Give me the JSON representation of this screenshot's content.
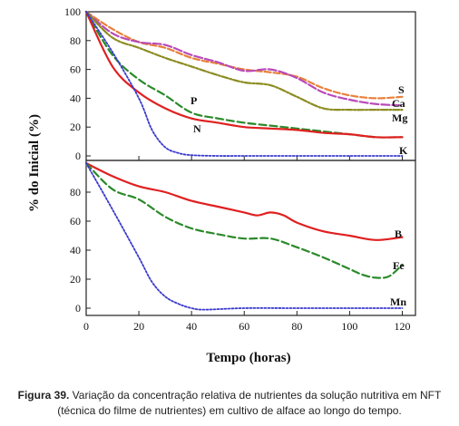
{
  "caption": {
    "label": "Figura 39.",
    "line1": "Variação da concentração relativa de nutrientes da solução nutritiva em NFT",
    "line2": "(técnica do filme de nutrientes) em cultivo de alface ao longo do tempo."
  },
  "chart_data": [
    {
      "type": "line",
      "xlabel": "Tempo (horas)",
      "ylabel": "% do Inicial (%)",
      "xlim": [
        0,
        125
      ],
      "ylim": [
        0,
        100
      ],
      "xticks": [
        0,
        20,
        40,
        60,
        80,
        100,
        120
      ],
      "yticks": [
        0,
        20,
        40,
        60,
        80,
        100
      ],
      "series": [
        {
          "name": "S",
          "color": "#e8803a",
          "dash": "7,3",
          "x": [
            0,
            10,
            20,
            30,
            40,
            50,
            60,
            70,
            80,
            90,
            100,
            110,
            120
          ],
          "y": [
            100,
            88,
            79,
            75,
            68,
            64,
            60,
            58,
            55,
            47,
            42,
            40,
            41
          ]
        },
        {
          "name": "Ca",
          "color": "#b84ab8",
          "dash": "9,3",
          "x": [
            0,
            10,
            20,
            30,
            40,
            50,
            60,
            70,
            80,
            90,
            100,
            110,
            120
          ],
          "y": [
            100,
            85,
            79,
            77,
            70,
            65,
            59,
            60,
            54,
            44,
            39,
            36,
            35
          ]
        },
        {
          "name": "Mg",
          "color": "#8c8c22",
          "dash": "7,2,2,2",
          "x": [
            0,
            10,
            20,
            30,
            40,
            50,
            60,
            70,
            80,
            90,
            100,
            110,
            120
          ],
          "y": [
            100,
            82,
            75,
            68,
            62,
            56,
            51,
            49,
            41,
            33,
            32,
            32,
            32
          ]
        },
        {
          "name": "P",
          "color": "#2a8a2a",
          "dash": "8,4",
          "x": [
            0,
            10,
            20,
            30,
            40,
            50,
            60,
            70,
            80,
            90,
            100,
            110,
            120
          ],
          "y": [
            100,
            70,
            53,
            42,
            30,
            26,
            23,
            21,
            19,
            17,
            15,
            13,
            13
          ]
        },
        {
          "name": "N",
          "color": "#e02020",
          "dash": "",
          "x": [
            0,
            10,
            20,
            30,
            40,
            50,
            60,
            70,
            80,
            90,
            100,
            110,
            120
          ],
          "y": [
            100,
            62,
            44,
            33,
            26,
            23,
            20,
            19,
            18,
            16,
            15,
            13,
            13
          ]
        },
        {
          "name": "K",
          "color": "#3a3acc",
          "dash": "2,2",
          "x": [
            0,
            10,
            20,
            25,
            30,
            35,
            40,
            50,
            60,
            80,
            100,
            120
          ],
          "y": [
            100,
            72,
            40,
            18,
            6,
            2,
            0.5,
            0,
            0,
            0,
            0,
            0
          ]
        }
      ]
    },
    {
      "type": "line",
      "xlabel": "Tempo (horas)",
      "ylabel": "% do Inicial (%)",
      "xlim": [
        0,
        125
      ],
      "ylim": [
        0,
        100
      ],
      "xticks": [
        0,
        20,
        40,
        60,
        80,
        100,
        120
      ],
      "yticks": [
        0,
        20,
        40,
        60,
        80
      ],
      "series": [
        {
          "name": "B",
          "color": "#e02020",
          "dash": "",
          "x": [
            0,
            10,
            20,
            30,
            40,
            50,
            60,
            65,
            70,
            75,
            80,
            90,
            100,
            110,
            120
          ],
          "y": [
            100,
            91,
            84,
            80,
            74,
            70,
            66,
            64,
            66,
            64,
            59,
            53,
            50,
            47,
            49
          ]
        },
        {
          "name": "Fe",
          "color": "#2a8a2a",
          "dash": "8,4",
          "x": [
            0,
            10,
            20,
            30,
            40,
            50,
            60,
            70,
            80,
            90,
            100,
            105,
            110,
            115,
            120
          ],
          "y": [
            100,
            82,
            75,
            63,
            55,
            51,
            48,
            48,
            42,
            35,
            27,
            23,
            21,
            22,
            30
          ]
        },
        {
          "name": "Mn",
          "color": "#3a3acc",
          "dash": "2,2",
          "x": [
            0,
            10,
            20,
            25,
            30,
            35,
            40,
            45,
            60,
            80,
            100,
            120
          ],
          "y": [
            100,
            68,
            35,
            18,
            8,
            3,
            0,
            -1,
            0,
            0,
            0,
            0
          ]
        }
      ]
    }
  ]
}
